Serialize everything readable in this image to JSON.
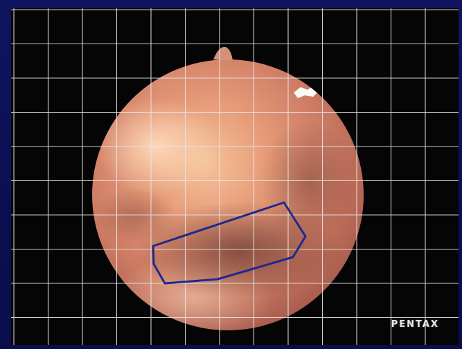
{
  "image": {
    "description_free": true,
    "brand_label": "PENTAX"
  },
  "colors": {
    "outer_frame": "#0b0f52",
    "screen_background": "#050505",
    "tissue_highlight": "#f2b48e",
    "tissue_mid": "#d4826a",
    "tissue_shadow": "#8e4a3c",
    "grid_line": "#e6e6e6",
    "roi_outline": "#1b2a8c"
  },
  "icons": {
    "overlay": "measurement-grid",
    "annotation": "region-of-interest-outline"
  }
}
